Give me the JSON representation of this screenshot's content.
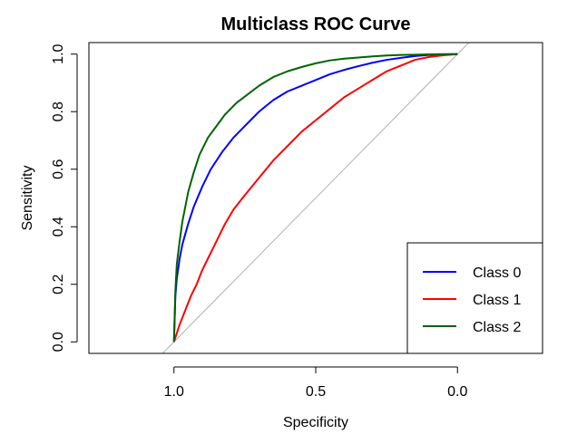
{
  "chart_data": {
    "type": "line",
    "title": "Multiclass ROC Curve",
    "xlabel": "Specificity",
    "ylabel": "Sensitivity",
    "x_reversed": true,
    "xlim": [
      1.3,
      -0.3
    ],
    "ylim": [
      -0.04,
      1.04
    ],
    "x_ticks": [
      1.0,
      0.5,
      0.0
    ],
    "x_tick_labels": [
      "1.0",
      "0.5",
      "0.0"
    ],
    "y_ticks": [
      0.0,
      0.2,
      0.4,
      0.6,
      0.8,
      1.0
    ],
    "y_tick_labels": [
      "0.0",
      "0.2",
      "0.4",
      "0.6",
      "0.8",
      "1.0"
    ],
    "reference_line": {
      "from": [
        1.0,
        0.0
      ],
      "to": [
        0.0,
        1.0
      ],
      "color": "#b0b0b0"
    },
    "legend_position": "bottom-right",
    "series": [
      {
        "name": "Class 0",
        "color": "#0000ff",
        "x": [
          1.0,
          0.995,
          0.99,
          0.98,
          0.97,
          0.95,
          0.93,
          0.9,
          0.87,
          0.83,
          0.79,
          0.75,
          0.7,
          0.65,
          0.6,
          0.55,
          0.5,
          0.45,
          0.4,
          0.35,
          0.3,
          0.25,
          0.2,
          0.15,
          0.1,
          0.05,
          0.0
        ],
        "y": [
          0.0,
          0.16,
          0.22,
          0.29,
          0.34,
          0.41,
          0.47,
          0.54,
          0.6,
          0.66,
          0.71,
          0.75,
          0.8,
          0.84,
          0.87,
          0.89,
          0.91,
          0.93,
          0.945,
          0.958,
          0.97,
          0.98,
          0.987,
          0.993,
          0.997,
          0.999,
          1.0
        ]
      },
      {
        "name": "Class 1",
        "color": "#ff0000",
        "x": [
          1.0,
          0.98,
          0.96,
          0.94,
          0.92,
          0.9,
          0.88,
          0.85,
          0.82,
          0.79,
          0.75,
          0.7,
          0.65,
          0.6,
          0.55,
          0.5,
          0.45,
          0.4,
          0.35,
          0.3,
          0.25,
          0.2,
          0.15,
          0.1,
          0.05,
          0.0
        ],
        "y": [
          0.0,
          0.06,
          0.11,
          0.16,
          0.2,
          0.25,
          0.29,
          0.35,
          0.41,
          0.46,
          0.51,
          0.57,
          0.63,
          0.68,
          0.73,
          0.77,
          0.81,
          0.85,
          0.88,
          0.91,
          0.94,
          0.96,
          0.98,
          0.99,
          0.996,
          1.0
        ]
      },
      {
        "name": "Class 2",
        "color": "#006400",
        "x": [
          1.0,
          0.995,
          0.99,
          0.98,
          0.97,
          0.95,
          0.93,
          0.91,
          0.88,
          0.85,
          0.82,
          0.78,
          0.74,
          0.7,
          0.65,
          0.6,
          0.55,
          0.5,
          0.45,
          0.4,
          0.35,
          0.3,
          0.25,
          0.2,
          0.15,
          0.1,
          0.05,
          0.0
        ],
        "y": [
          0.0,
          0.18,
          0.27,
          0.35,
          0.42,
          0.52,
          0.59,
          0.65,
          0.71,
          0.75,
          0.79,
          0.83,
          0.86,
          0.89,
          0.92,
          0.94,
          0.955,
          0.968,
          0.978,
          0.984,
          0.988,
          0.992,
          0.995,
          0.997,
          0.998,
          0.999,
          1.0,
          1.0
        ]
      }
    ]
  }
}
